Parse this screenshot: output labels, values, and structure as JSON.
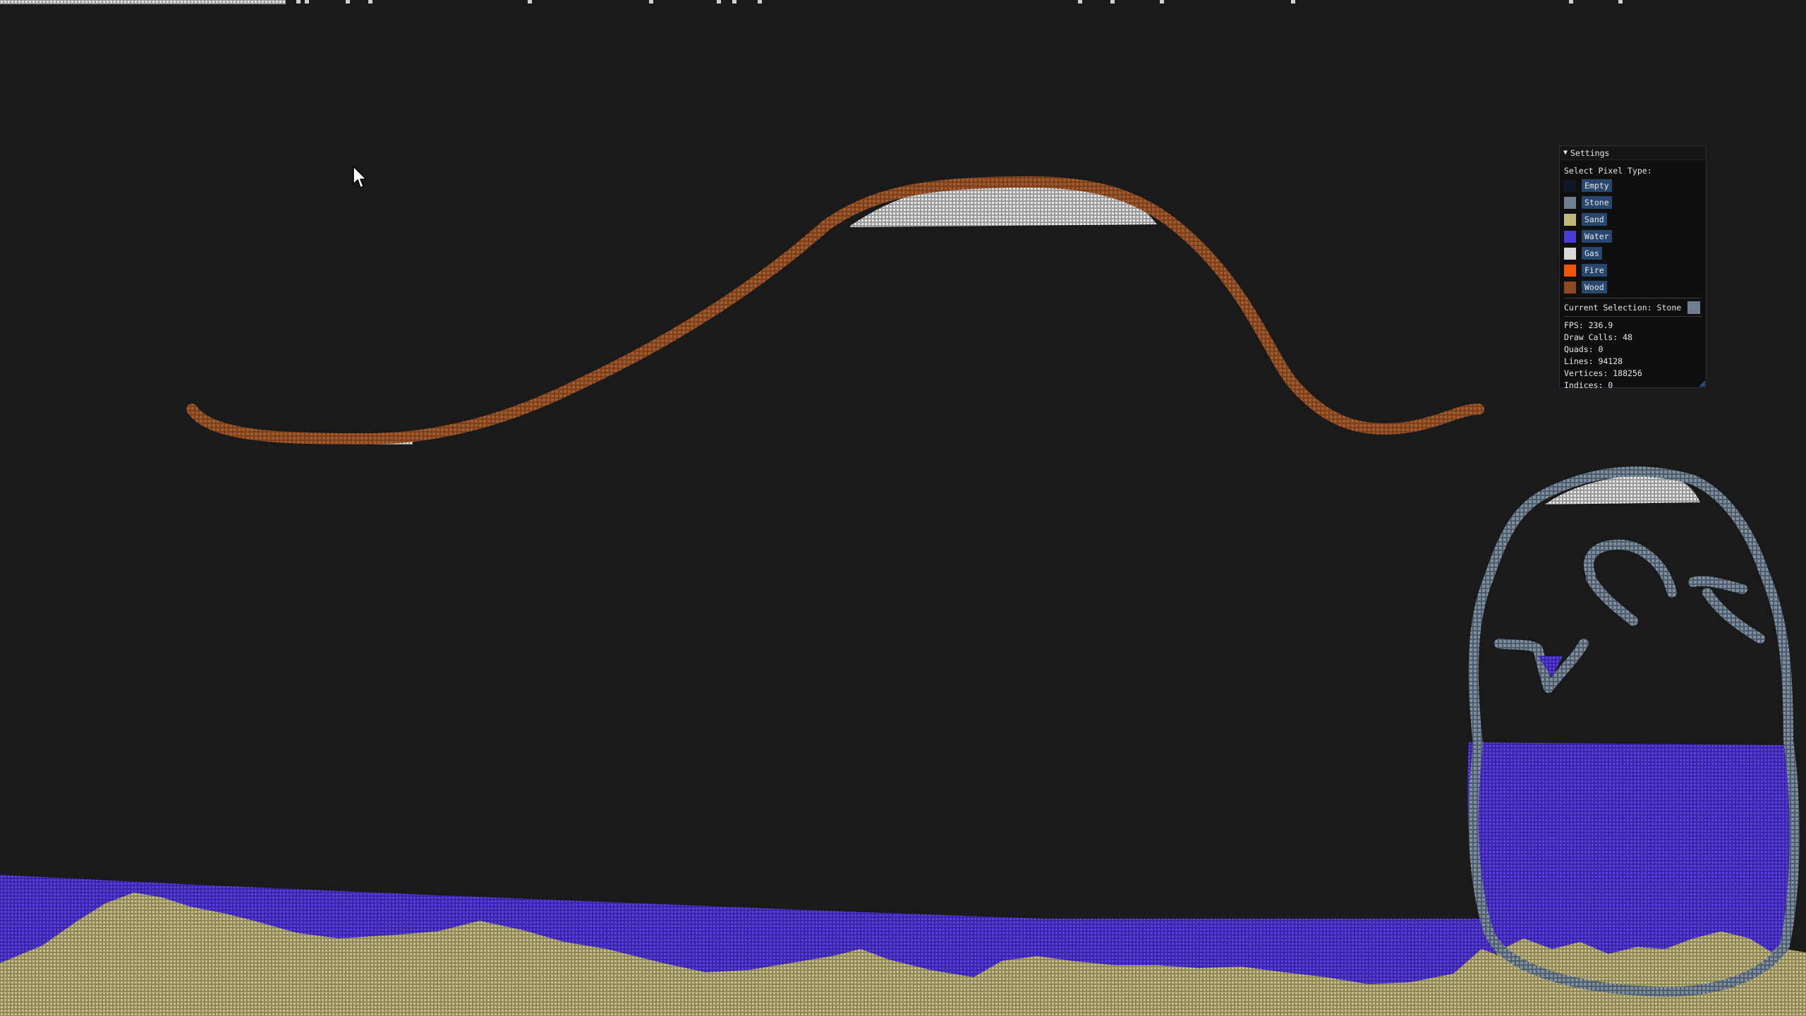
{
  "colors": {
    "background": "#1a1a1a",
    "wood": "#8a4a22",
    "gas": "#d8d8d8",
    "stone": "#6d7f91",
    "water": "#4a32c6",
    "sand": "#b5ad74"
  },
  "settings": {
    "title": "Settings",
    "collapse_icon": "triangle-down-icon",
    "select_label": "Select Pixel Type:",
    "pixel_types": [
      {
        "label": "Empty",
        "color": "#111827"
      },
      {
        "label": "Stone",
        "color": "#6f7f92"
      },
      {
        "label": "Sand",
        "color": "#c2b77a"
      },
      {
        "label": "Water",
        "color": "#4a3ad6"
      },
      {
        "label": "Gas",
        "color": "#d9d9d9"
      },
      {
        "label": "Fire",
        "color": "#f0560a"
      },
      {
        "label": "Wood",
        "color": "#8b4a1f"
      }
    ],
    "current_selection_label": "Current Selection: Stone",
    "current_selection_color": "#6f7f92",
    "stats": [
      "FPS: 236.9",
      "Draw Calls: 48",
      "Quads: 0",
      "Lines: 94128",
      "Vertices: 188256",
      "Indices: 0"
    ]
  }
}
